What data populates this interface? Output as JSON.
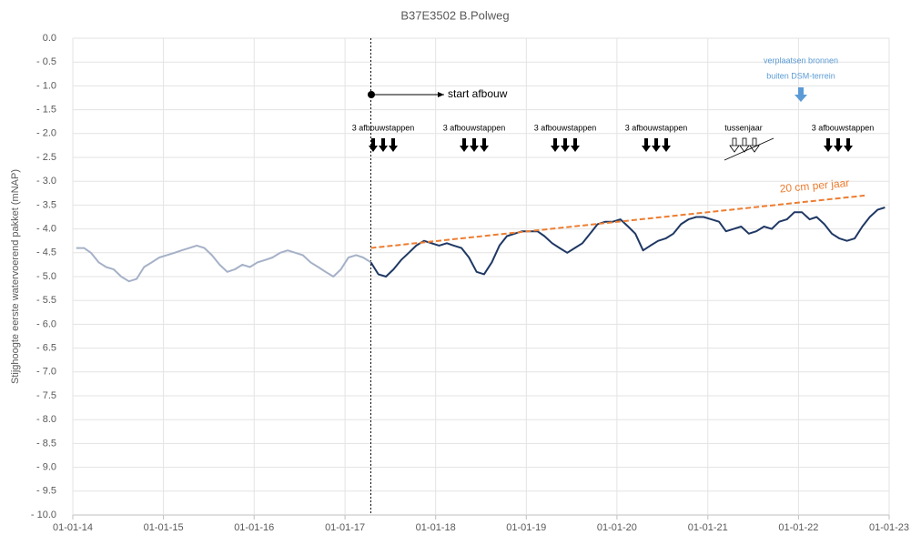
{
  "chart_data": {
    "type": "line",
    "title": "B37E3502 B.Polweg",
    "y_label": "Stijghoogte eerste watervoerend pakket (mNAP)",
    "x": [
      "2014-01-15",
      "2014-02-15",
      "2014-03-15",
      "2014-04-15",
      "2014-05-15",
      "2014-06-15",
      "2014-07-15",
      "2014-08-15",
      "2014-09-15",
      "2014-10-15",
      "2014-11-15",
      "2014-12-15",
      "2015-01-15",
      "2015-02-15",
      "2015-03-15",
      "2015-04-15",
      "2015-05-15",
      "2015-06-15",
      "2015-07-15",
      "2015-08-15",
      "2015-09-15",
      "2015-10-15",
      "2015-11-15",
      "2015-12-15",
      "2016-01-15",
      "2016-02-15",
      "2016-03-15",
      "2016-04-15",
      "2016-05-15",
      "2016-06-15",
      "2016-07-15",
      "2016-08-15",
      "2016-09-15",
      "2016-10-15",
      "2016-11-15",
      "2016-12-15",
      "2017-01-15",
      "2017-02-15",
      "2017-03-15",
      "2017-04-15",
      "2017-05-15",
      "2017-06-15",
      "2017-07-15",
      "2017-08-15",
      "2017-09-15",
      "2017-10-15",
      "2017-11-15",
      "2017-12-15",
      "2018-01-15",
      "2018-02-15",
      "2018-03-15",
      "2018-04-15",
      "2018-05-15",
      "2018-06-15",
      "2018-07-15",
      "2018-08-15",
      "2018-09-15",
      "2018-10-15",
      "2018-11-15",
      "2018-12-15",
      "2019-01-15",
      "2019-02-15",
      "2019-03-15",
      "2019-04-15",
      "2019-05-15",
      "2019-06-15",
      "2019-07-15",
      "2019-08-15",
      "2019-09-15",
      "2019-10-15",
      "2019-11-15",
      "2019-12-15",
      "2020-01-15",
      "2020-02-15",
      "2020-03-15",
      "2020-04-15",
      "2020-05-15",
      "2020-06-15",
      "2020-07-15",
      "2020-08-15",
      "2020-09-15",
      "2020-10-15",
      "2020-11-15",
      "2020-12-15",
      "2021-01-15",
      "2021-02-15",
      "2021-03-15",
      "2021-04-15",
      "2021-05-15",
      "2021-06-15",
      "2021-07-15",
      "2021-08-15",
      "2021-09-15",
      "2021-10-15",
      "2021-11-15",
      "2021-12-15",
      "2022-01-15",
      "2022-02-15",
      "2022-03-15",
      "2022-04-15",
      "2022-05-15",
      "2022-06-15",
      "2022-07-15",
      "2022-08-15",
      "2022-09-15",
      "2022-10-15",
      "2022-11-15",
      "2022-12-15"
    ],
    "series": [
      {
        "color": "#a5b1c7",
        "values": [
          -4.4,
          -4.4,
          -4.5,
          -4.7,
          -4.8,
          -4.85,
          -5.0,
          -5.1,
          -5.05,
          -4.8,
          -4.7,
          -4.6,
          -4.55,
          -4.5,
          -4.45,
          -4.4,
          -4.35,
          -4.4,
          -4.55,
          -4.75,
          -4.9,
          -4.85,
          -4.75,
          -4.8,
          -4.7,
          -4.65,
          -4.6,
          -4.5,
          -4.45,
          -4.5,
          -4.55,
          -4.7,
          -4.8,
          -4.9,
          -5.0,
          -4.85,
          -4.6,
          -4.55,
          -4.6,
          -4.7,
          null,
          null,
          null,
          null,
          null,
          null,
          null,
          null,
          null,
          null,
          null,
          null,
          null,
          null,
          null,
          null,
          null,
          null,
          null,
          null,
          null,
          null,
          null,
          null,
          null,
          null,
          null,
          null,
          null,
          null,
          null,
          null,
          null,
          null,
          null,
          null,
          null,
          null,
          null,
          null,
          null,
          null,
          null,
          null,
          null,
          null,
          null,
          null,
          null,
          null,
          null,
          null,
          null,
          null,
          null,
          null,
          null,
          null,
          null,
          null,
          null,
          null,
          null,
          null,
          null,
          null,
          null,
          null
        ]
      },
      {
        "color": "#1f3864",
        "values": [
          null,
          null,
          null,
          null,
          null,
          null,
          null,
          null,
          null,
          null,
          null,
          null,
          null,
          null,
          null,
          null,
          null,
          null,
          null,
          null,
          null,
          null,
          null,
          null,
          null,
          null,
          null,
          null,
          null,
          null,
          null,
          null,
          null,
          null,
          null,
          null,
          null,
          null,
          null,
          -4.7,
          -4.95,
          -5.0,
          -4.85,
          -4.65,
          -4.5,
          -4.35,
          -4.25,
          -4.3,
          -4.35,
          -4.3,
          -4.35,
          -4.4,
          -4.6,
          -4.9,
          -4.95,
          -4.7,
          -4.35,
          -4.15,
          -4.1,
          -4.05,
          -4.05,
          -4.05,
          -4.15,
          -4.3,
          -4.4,
          -4.5,
          -4.4,
          -4.3,
          -4.1,
          -3.9,
          -3.85,
          -3.85,
          -3.8,
          -3.95,
          -4.1,
          -4.45,
          -4.35,
          -4.25,
          -4.2,
          -4.1,
          -3.9,
          -3.8,
          -3.75,
          -3.75,
          -3.8,
          -3.85,
          -4.05,
          -4.0,
          -3.95,
          -4.1,
          -4.05,
          -3.95,
          -4.0,
          -3.85,
          -3.8,
          -3.65,
          -3.65,
          -3.8,
          -3.75,
          -3.9,
          -4.1,
          -4.2,
          -4.25,
          -4.2,
          -3.95,
          -3.75,
          -3.6,
          -3.55
        ]
      }
    ],
    "trend": {
      "label": "20 cm per jaar",
      "color": "#ed7d31",
      "x": [
        "2017-04-15",
        "2022-09-24"
      ],
      "values": [
        -4.4,
        -3.3
      ]
    },
    "marker_x": "2017-04-15",
    "xlim": [
      "2014-01-01",
      "2023-01-01"
    ],
    "xticks": [
      {
        "value": "2014-01-01",
        "label": "01-01-14"
      },
      {
        "value": "2015-01-01",
        "label": "01-01-15"
      },
      {
        "value": "2016-01-01",
        "label": "01-01-16"
      },
      {
        "value": "2017-01-01",
        "label": "01-01-17"
      },
      {
        "value": "2018-01-01",
        "label": "01-01-18"
      },
      {
        "value": "2019-01-01",
        "label": "01-01-19"
      },
      {
        "value": "2020-01-01",
        "label": "01-01-20"
      },
      {
        "value": "2021-01-01",
        "label": "01-01-21"
      },
      {
        "value": "2022-01-01",
        "label": "01-01-22"
      },
      {
        "value": "2023-01-01",
        "label": "01-01-23"
      }
    ],
    "ylim": [
      -10,
      0
    ],
    "yticks": [
      {
        "value": 0,
        "label": "0.0"
      },
      {
        "value": -0.5,
        "label": "- 0.5"
      },
      {
        "value": -1,
        "label": "- 1.0"
      },
      {
        "value": -1.5,
        "label": "- 1.5"
      },
      {
        "value": -2,
        "label": "- 2.0"
      },
      {
        "value": -2.5,
        "label": "- 2.5"
      },
      {
        "value": -3,
        "label": "- 3.0"
      },
      {
        "value": -3.5,
        "label": "- 3.5"
      },
      {
        "value": -4,
        "label": "- 4.0"
      },
      {
        "value": -4.5,
        "label": "- 4.5"
      },
      {
        "value": -5,
        "label": "- 5.0"
      },
      {
        "value": -5.5,
        "label": "- 5.5"
      },
      {
        "value": -6,
        "label": "- 6.0"
      },
      {
        "value": -6.5,
        "label": "- 6.5"
      },
      {
        "value": -7,
        "label": "- 7.0"
      },
      {
        "value": -7.5,
        "label": "- 7.5"
      },
      {
        "value": -8,
        "label": "- 8.0"
      },
      {
        "value": -8.5,
        "label": "- 8.5"
      },
      {
        "value": -9,
        "label": "- 9.0"
      },
      {
        "value": -9.5,
        "label": "- 9.5"
      },
      {
        "value": -10,
        "label": "- 10.0"
      }
    ],
    "grid": true,
    "annotations": {
      "start": "start afbouw",
      "steps": [
        "3 afbouwstappen",
        "3 afbouwstappen",
        "3 afbouwstappen",
        "3 afbouwstappen",
        "3 afbouwstappen"
      ],
      "gap_year": "tussenjaar",
      "relocate": [
        "verplaatsen bronnen",
        "buiten DSM-terrein"
      ]
    }
  }
}
